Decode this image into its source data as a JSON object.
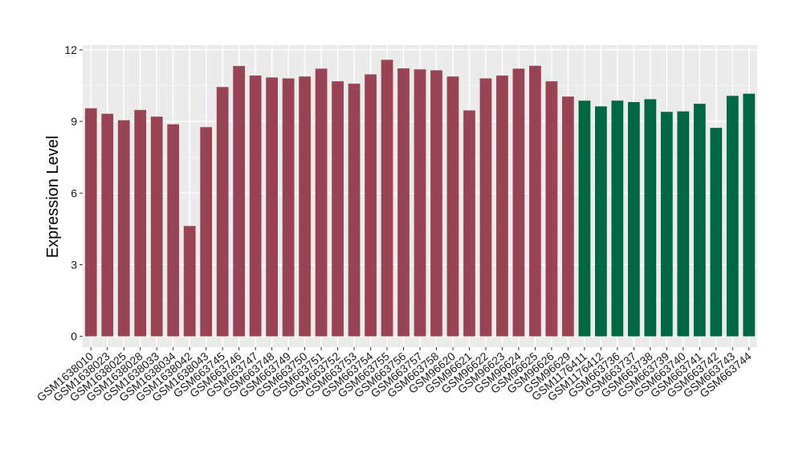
{
  "chart_data": {
    "type": "bar",
    "ylabel": "Expression Level",
    "xlabel": "",
    "ylim": [
      -0.45,
      12.2
    ],
    "yticks": [
      0,
      3,
      6,
      9,
      12
    ],
    "grid": true,
    "background": "#ebebeb",
    "colors": {
      "group1": "#994455",
      "group2": "#006644"
    },
    "categories": [
      "GSM1638010",
      "GSM1638023",
      "GSM1638025",
      "GSM1638028",
      "GSM1638033",
      "GSM1638034",
      "GSM1638042",
      "GSM1638043",
      "GSM663745",
      "GSM663746",
      "GSM663747",
      "GSM663748",
      "GSM663749",
      "GSM663750",
      "GSM663751",
      "GSM663752",
      "GSM663753",
      "GSM663754",
      "GSM663755",
      "GSM663756",
      "GSM663757",
      "GSM663758",
      "GSM96620",
      "GSM96621",
      "GSM96622",
      "GSM96623",
      "GSM96624",
      "GSM96625",
      "GSM96626",
      "GSM96629",
      "GSM1176411",
      "GSM1176412",
      "GSM663736",
      "GSM663737",
      "GSM663738",
      "GSM663739",
      "GSM663740",
      "GSM663741",
      "GSM663742",
      "GSM663743",
      "GSM663744"
    ],
    "values": [
      9.55,
      9.32,
      9.05,
      9.48,
      9.2,
      8.88,
      4.62,
      8.76,
      10.44,
      11.32,
      10.92,
      10.84,
      10.8,
      10.88,
      11.21,
      10.68,
      10.58,
      10.97,
      11.58,
      11.22,
      11.18,
      11.14,
      10.88,
      9.46,
      10.8,
      10.92,
      11.21,
      11.33,
      10.68,
      10.04,
      9.87,
      9.63,
      9.87,
      9.81,
      9.93,
      9.4,
      9.42,
      9.74,
      8.73,
      10.07,
      10.16
    ],
    "groups": [
      1,
      1,
      1,
      1,
      1,
      1,
      1,
      1,
      1,
      1,
      1,
      1,
      1,
      1,
      1,
      1,
      1,
      1,
      1,
      1,
      1,
      1,
      1,
      1,
      1,
      1,
      1,
      1,
      1,
      1,
      2,
      2,
      2,
      2,
      2,
      2,
      2,
      2,
      2,
      2,
      2
    ]
  }
}
